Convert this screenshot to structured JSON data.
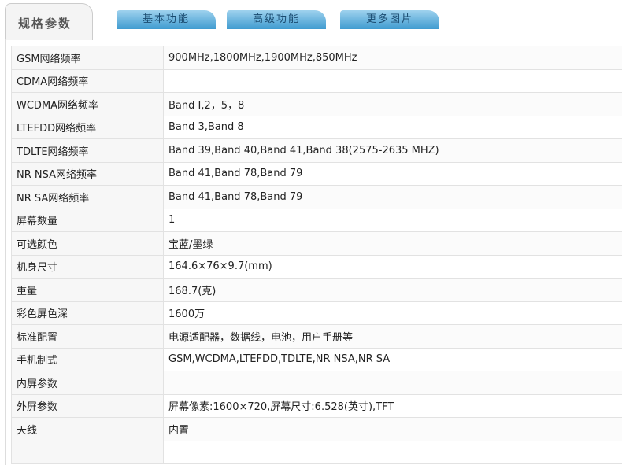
{
  "tabs": [
    {
      "label": "规格参数",
      "active": true
    },
    {
      "label": "基本功能"
    },
    {
      "label": "高级功能"
    },
    {
      "label": "更多图片"
    }
  ],
  "specs": [
    {
      "k": "GSM网络频率",
      "v": "900MHz,1800MHz,1900MHz,850MHz"
    },
    {
      "k": "CDMA网络频率",
      "v": ""
    },
    {
      "k": "WCDMA网络频率",
      "v": "Band I,2，5，8"
    },
    {
      "k": "LTEFDD网络频率",
      "v": "Band 3,Band 8"
    },
    {
      "k": "TDLTE网络频率",
      "v": "Band 39,Band 40,Band 41,Band 38(2575-2635 MHZ)"
    },
    {
      "k": "NR NSA网络频率",
      "v": "Band 41,Band 78,Band 79"
    },
    {
      "k": "NR SA网络频率",
      "v": "Band 41,Band 78,Band 79"
    },
    {
      "k": "屏幕数量",
      "v": "1"
    },
    {
      "k": "可选颜色",
      "v": "宝蓝/墨绿"
    },
    {
      "k": "机身尺寸",
      "v": "164.6×76×9.7(mm)"
    },
    {
      "k": "重量",
      "v": "168.7(克)"
    },
    {
      "k": "彩色屏色深",
      "v": "1600万"
    },
    {
      "k": "标准配置",
      "v": "电源适配器，数据线，电池，用户手册等"
    },
    {
      "k": "手机制式",
      "v": "GSM,WCDMA,LTEFDD,TDLTE,NR NSA,NR SA"
    },
    {
      "k": "内屏参数",
      "v": ""
    },
    {
      "k": "外屏参数",
      "v": "屏幕像素:1600×720,屏幕尺寸:6.528(英寸),TFT"
    },
    {
      "k": "天线",
      "v": "内置"
    },
    {
      "k": "",
      "v": ""
    }
  ]
}
